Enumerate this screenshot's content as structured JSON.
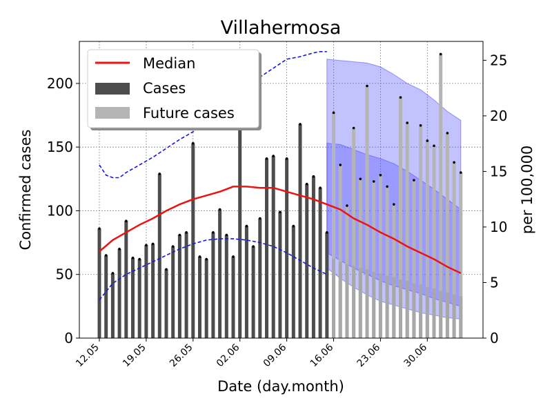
{
  "chart_data": {
    "type": "bar",
    "title": "Villahermosa",
    "xlabel": "Date (day.month)",
    "ylabel": "Confirmed cases",
    "ylabel_right": "per 100,000",
    "ylim": [
      0,
      233
    ],
    "ylim_right": [
      0,
      26.7
    ],
    "yticks": [
      0,
      50,
      100,
      150,
      200
    ],
    "yticks_right": [
      0,
      5,
      10,
      15,
      20,
      25
    ],
    "xticks": [
      {
        "day": 0,
        "label": "12.05"
      },
      {
        "day": 7,
        "label": "19.05"
      },
      {
        "day": 14,
        "label": "26.05"
      },
      {
        "day": 21,
        "label": "02.06"
      },
      {
        "day": 28,
        "label": "09.06"
      },
      {
        "day": 35,
        "label": "16.06"
      },
      {
        "day": 42,
        "label": "23.06"
      },
      {
        "day": 49,
        "label": "30.06"
      }
    ],
    "grid": true,
    "legend_position": "top-left",
    "legend": [
      {
        "label": "Median",
        "kind": "line",
        "color": "#ee1111"
      },
      {
        "label": "Cases",
        "kind": "bar",
        "color": "#4d4d4d"
      },
      {
        "label": "Future cases",
        "kind": "bar",
        "color": "#b5b5b5"
      }
    ],
    "cases_start_day": 0,
    "cases": [
      86,
      65,
      51,
      70,
      92,
      63,
      62,
      73,
      74,
      129,
      54,
      72,
      81,
      83,
      153,
      64,
      62,
      83,
      101,
      81,
      64,
      190,
      88,
      72,
      94,
      141,
      143,
      99,
      141,
      88,
      168,
      121,
      127,
      118,
      83
    ],
    "future_start_day": 35,
    "future_cases": [
      177,
      136,
      104,
      165,
      125,
      198,
      123,
      128,
      119,
      105,
      189,
      169,
      124,
      167,
      155,
      151,
      223,
      161,
      138,
      130
    ],
    "future_bar_tops": [
      62,
      60,
      58,
      57,
      55,
      54,
      52,
      51,
      49,
      48,
      46,
      45,
      43,
      42,
      40,
      39,
      37,
      36,
      34,
      33
    ],
    "median": {
      "x": [
        0,
        2,
        4,
        6,
        8,
        10,
        12,
        14,
        16,
        18,
        20,
        22,
        24,
        26,
        28,
        30,
        32,
        34,
        36,
        38,
        40,
        42,
        44,
        46,
        48,
        50,
        52,
        54
      ],
      "y": [
        68,
        77,
        83,
        89,
        94,
        100,
        105,
        109,
        112,
        115,
        119,
        119,
        118,
        118,
        115,
        112,
        109,
        105,
        101,
        94,
        89,
        83,
        78,
        72,
        67,
        62,
        56,
        51
      ]
    },
    "blue_upper": {
      "x": [
        0,
        1,
        2,
        3,
        4,
        6,
        8,
        10,
        12,
        14,
        16,
        18,
        20,
        22,
        24,
        26,
        28,
        30,
        32,
        33,
        34
      ],
      "y": [
        136,
        128,
        126,
        126,
        130,
        136,
        142,
        149,
        156,
        162,
        169,
        178,
        188,
        197,
        205,
        212,
        219,
        221,
        224,
        225,
        225
      ]
    },
    "blue_lower": {
      "x": [
        0,
        2,
        4,
        6,
        8,
        10,
        12,
        14,
        16,
        18,
        20,
        22,
        24,
        26,
        28,
        30,
        32,
        34
      ],
      "y": [
        30,
        43,
        50,
        55,
        60,
        65,
        70,
        74,
        77,
        78,
        78,
        77,
        75,
        72,
        67,
        61,
        55,
        50
      ]
    },
    "band_x": [
      34,
      36,
      38,
      40,
      42,
      44,
      46,
      48,
      50,
      52,
      54
    ],
    "band_outer_upper": [
      219,
      218,
      217,
      216,
      213,
      207,
      200,
      195,
      187,
      178,
      171
    ],
    "band_outer_lower": [
      55,
      47,
      40,
      34,
      29,
      26,
      23,
      20,
      18,
      16,
      15
    ],
    "band_inner_upper": [
      153,
      152,
      148,
      144,
      141,
      137,
      131,
      124,
      117,
      109,
      101
    ],
    "band_inner_lower": [
      67,
      61,
      55,
      50,
      45,
      41,
      38,
      35,
      31,
      28,
      25
    ]
  }
}
